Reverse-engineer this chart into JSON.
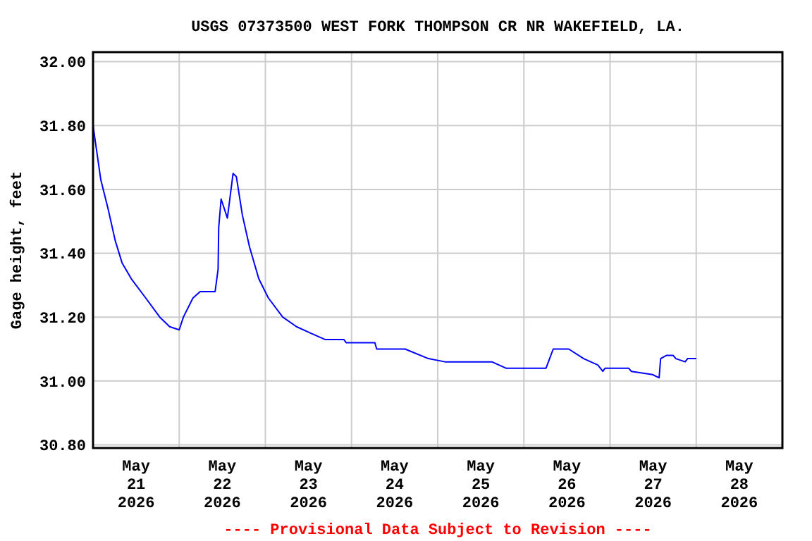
{
  "chart_data": {
    "type": "line",
    "title": "USGS 07373500 WEST FORK THOMPSON CR NR WAKEFIELD, LA.",
    "ylabel": "Gage height, feet",
    "annotations": [
      "---- Provisional Data Subject to Revision ----"
    ],
    "xlim": [
      "2026-05-21T00:00",
      "2026-05-29T00:00"
    ],
    "xticks": [
      {
        "value": "2026-05-21T12:00",
        "label": "May\n21\n2026"
      },
      {
        "value": "2026-05-22T12:00",
        "label": "May\n22\n2026"
      },
      {
        "value": "2026-05-23T12:00",
        "label": "May\n23\n2026"
      },
      {
        "value": "2026-05-24T12:00",
        "label": "May\n24\n2026"
      },
      {
        "value": "2026-05-25T12:00",
        "label": "May\n25\n2026"
      },
      {
        "value": "2026-05-26T12:00",
        "label": "May\n26\n2026"
      },
      {
        "value": "2026-05-27T12:00",
        "label": "May\n27\n2026"
      },
      {
        "value": "2026-05-28T12:00",
        "label": "May\n28\n2026"
      },
      {
        "value": "2026-05-22T00:00",
        "label": null
      },
      {
        "value": "2026-05-23T00:00",
        "label": null
      },
      {
        "value": "2026-05-24T00:00",
        "label": null
      },
      {
        "value": "2026-05-25T00:00",
        "label": null
      },
      {
        "value": "2026-05-26T00:00",
        "label": null
      },
      {
        "value": "2026-05-27T00:00",
        "label": null
      },
      {
        "value": "2026-05-28T00:00",
        "label": null
      }
    ],
    "ylim": [
      30.79,
      32.03
    ],
    "yticks": [
      {
        "value": 30.8,
        "label": "30.80"
      },
      {
        "value": 31,
        "label": "31.00"
      },
      {
        "value": 31.2,
        "label": "31.20"
      },
      {
        "value": 31.4,
        "label": "31.40"
      },
      {
        "value": 31.6,
        "label": "31.60"
      },
      {
        "value": 31.8,
        "label": "31.80"
      },
      {
        "value": 32,
        "label": "32.00"
      }
    ],
    "grid": true,
    "x": [
      "2026-05-21T00:00",
      "2026-05-21T02:10",
      "2026-05-21T04:10",
      "2026-05-21T06:10",
      "2026-05-21T08:05",
      "2026-05-21T10:40",
      "2026-05-21T14:40",
      "2026-05-21T18:35",
      "2026-05-21T21:20",
      "2026-05-22T00:00",
      "2026-05-22T01:10",
      "2026-05-22T03:50",
      "2026-05-22T05:50",
      "2026-05-22T10:00",
      "2026-05-22T10:50",
      "2026-05-22T11:00",
      "2026-05-22T11:40",
      "2026-05-22T13:25",
      "2026-05-22T15:00",
      "2026-05-22T15:55",
      "2026-05-22T17:35",
      "2026-05-22T19:35",
      "2026-05-22T22:10",
      "2026-05-23T00:50",
      "2026-05-23T04:50",
      "2026-05-23T08:40",
      "2026-05-23T12:35",
      "2026-05-23T16:35",
      "2026-05-23T21:50",
      "2026-05-23T22:30",
      "2026-05-24T06:30",
      "2026-05-24T07:00",
      "2026-05-24T14:55",
      "2026-05-24T21:25",
      "2026-05-25T02:00",
      "2026-05-25T15:05",
      "2026-05-25T19:00",
      "2026-05-26T06:10",
      "2026-05-26T08:10",
      "2026-05-26T12:30",
      "2026-05-26T16:40",
      "2026-05-26T20:35",
      "2026-05-26T22:00",
      "2026-05-26T22:35",
      "2026-05-27T05:10",
      "2026-05-27T05:55",
      "2026-05-27T11:50",
      "2026-05-27T13:40",
      "2026-05-27T14:05",
      "2026-05-27T15:40",
      "2026-05-27T17:35",
      "2026-05-27T18:20",
      "2026-05-27T20:55",
      "2026-05-27T21:35",
      "2026-05-28T00:00"
    ],
    "series": [
      {
        "color": "#0000ff",
        "values": [
          31.8,
          31.63,
          31.54,
          31.44,
          31.37,
          31.32,
          31.26,
          31.2,
          31.17,
          31.16,
          31.2,
          31.26,
          31.28,
          31.28,
          31.35,
          31.48,
          31.57,
          31.51,
          31.65,
          31.64,
          31.52,
          31.42,
          31.32,
          31.26,
          31.2,
          31.17,
          31.15,
          31.13,
          31.13,
          31.12,
          31.12,
          31.1,
          31.1,
          31.07,
          31.06,
          31.06,
          31.04,
          31.04,
          31.1,
          31.1,
          31.07,
          31.05,
          31.03,
          31.04,
          31.04,
          31.03,
          31.02,
          31.01,
          31.07,
          31.08,
          31.08,
          31.07,
          31.06,
          31.07,
          31.07
        ]
      }
    ]
  }
}
